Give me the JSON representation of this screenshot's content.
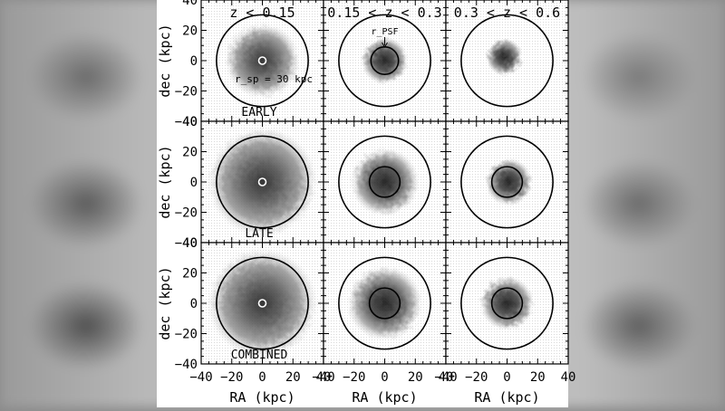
{
  "figure": {
    "column_labels": [
      "z < 0.15",
      "0.15 < z < 0.3",
      "0.3 < z < 0.6"
    ],
    "row_labels": [
      "EARLY",
      "LATE",
      "COMBINED"
    ],
    "y_axis_label": "dec (kpc)",
    "x_axis_label": "RA (kpc)",
    "y_tick_labels": [
      "40",
      "20",
      "0",
      "−20",
      "−40"
    ],
    "x_tick_labels": [
      "−40",
      "−20",
      "0",
      "20",
      "40"
    ],
    "annotation_rsp": "r_sp = 30 kpc",
    "annotation_psf": "r_PSF"
  },
  "chart_data": {
    "type": "other",
    "description_free": true,
    "panels_rows": [
      "EARLY",
      "LATE",
      "COMBINED"
    ],
    "panels_columns": [
      "z < 0.15",
      "0.15 < z < 0.3",
      "0.3 < z < 0.6"
    ],
    "xlim": [
      -40,
      40
    ],
    "ylim": [
      -40,
      40
    ],
    "x_ticks": [
      -40,
      -20,
      0,
      20,
      40
    ],
    "y_ticks": [
      -40,
      -20,
      0,
      20,
      40
    ],
    "outer_circle_radius_kpc": 30,
    "inner_circle_radius_kpc": [
      [
        0,
        9,
        0
      ],
      [
        0,
        10,
        10
      ],
      [
        0,
        10,
        10
      ]
    ]
  }
}
